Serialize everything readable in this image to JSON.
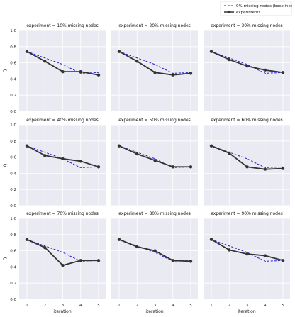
{
  "legend": {
    "baseline_label": "0% missing nodes (baseline)",
    "experiments_label": "experiments"
  },
  "colors": {
    "baseline": "#1f1fd6",
    "experiments": "#333333",
    "panel_bg": "#eaeaf2",
    "grid": "#ffffff"
  },
  "chart_data": {
    "type": "line",
    "x": [
      1,
      2,
      3,
      4,
      5
    ],
    "xlabel": "iteration",
    "ylabel": "Q",
    "ylim": [
      0,
      1.0
    ],
    "yticks": [
      "0.0",
      "0.2",
      "0.4",
      "0.6",
      "0.8",
      "1.0"
    ],
    "xticks": [
      "1",
      "2",
      "3",
      "4",
      "5"
    ],
    "grid": true,
    "legend_position": "top-right",
    "baseline": {
      "name": "0% missing nodes (baseline)",
      "values": [
        0.74,
        0.66,
        0.58,
        0.47,
        0.48
      ]
    },
    "panels": [
      {
        "title": "experiment = 10% missing nodes",
        "values": [
          0.74,
          0.62,
          0.49,
          0.49,
          0.45
        ]
      },
      {
        "title": "experiment = 20% missing nodes",
        "values": [
          0.74,
          0.62,
          0.48,
          0.45,
          0.47
        ]
      },
      {
        "title": "experiment = 30% missing nodes",
        "values": [
          0.74,
          0.64,
          0.56,
          0.51,
          0.48
        ]
      },
      {
        "title": "experiment = 40% missing nodes",
        "values": [
          0.74,
          0.62,
          0.58,
          0.55,
          0.48
        ]
      },
      {
        "title": "experiment = 50% missing nodes",
        "values": [
          0.74,
          0.64,
          0.56,
          0.48,
          0.48
        ]
      },
      {
        "title": "experiment = 60% missing nodes",
        "values": [
          0.74,
          0.65,
          0.48,
          0.45,
          0.46
        ]
      },
      {
        "title": "experiment = 70% missing nodes",
        "values": [
          0.74,
          0.64,
          0.42,
          0.48,
          0.48
        ]
      },
      {
        "title": "experiment = 80% missing nodes",
        "values": [
          0.74,
          0.65,
          0.6,
          0.48,
          0.47
        ]
      },
      {
        "title": "experiment = 90% missing nodes",
        "values": [
          0.74,
          0.61,
          0.56,
          0.54,
          0.48
        ]
      }
    ]
  }
}
